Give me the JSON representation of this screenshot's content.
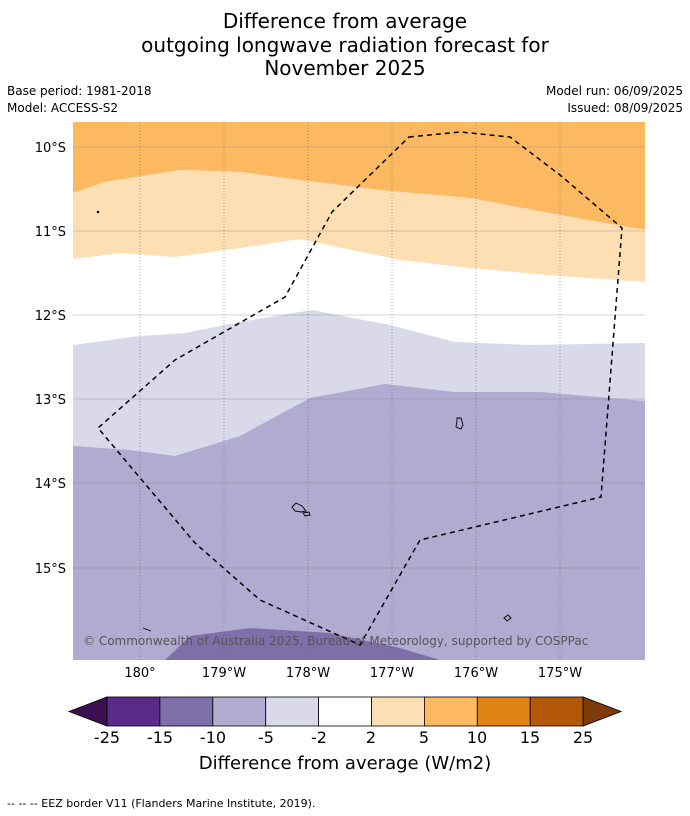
{
  "header": {
    "title_lines": [
      "Difference from average",
      "outgoing longwave radiation forecast for",
      "November 2025"
    ],
    "base_period": "Base period: 1981-2018",
    "model": "Model: ACCESS-S2",
    "model_run": "Model run: 06/09/2025",
    "issued": "Issued: 08/09/2025"
  },
  "map": {
    "lat_labels": [
      "10°S",
      "11°S",
      "12°S",
      "13°S",
      "14°S",
      "15°S"
    ],
    "lon_labels": [
      "180°",
      "179°W",
      "178°W",
      "177°W",
      "176°W",
      "175°W"
    ],
    "copyright": "© Commonwealth of Australia 2025, Bureau of Meteorology, supported by COSPPac"
  },
  "colorbar": {
    "labels": [
      "-25",
      "-15",
      "-10",
      "-5",
      "-2",
      "2",
      "5",
      "10",
      "15",
      "25"
    ],
    "colors": [
      "#3b0f52",
      "#5a2a8a",
      "#7f6fa8",
      "#b1abd1",
      "#d9d9ea",
      "#ffffff",
      "#fedfb3",
      "#fdb862",
      "#e08214",
      "#b35806",
      "#7f3b08"
    ],
    "title": "Difference from average (W/m2)"
  },
  "footer": {
    "legend": "--  --  -- EEZ border V11 (Flanders Marine Institute, 2019)."
  }
}
